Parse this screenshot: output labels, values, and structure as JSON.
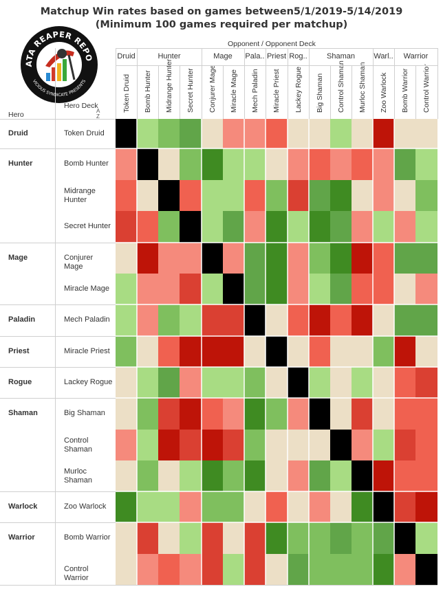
{
  "title_line1": "Matchup Win rates based on games between5/1/2019-5/14/2019",
  "title_line2": "(Minimum 100 games required per matchup)",
  "logo": {
    "text_top": "DATA REAPER REPORT",
    "text_bottom": "VICIOUS SYNDICATE PRESENTS"
  },
  "header": {
    "opponent_label": "Opponent  /  Opponent Deck",
    "hero_label": "Hero",
    "hero_deck_label": "Hero Deck"
  },
  "colors": {
    "black": "#000000",
    "beige": "#ecdfc6",
    "light_green": "#a8dc83",
    "mid_green": "#7fbf5e",
    "green": "#61a549",
    "dark_green": "#3f8b22",
    "salmon": "#f58a7c",
    "coral": "#f06150",
    "red_orange": "#da4032",
    "dark_red": "#be1408"
  },
  "chart_data": {
    "type": "heatmap",
    "title": "Matchup Win rates based on games between5/1/2019-5/14/2019",
    "subtitle": "(Minimum 100 games required per matchup)",
    "xlabel": "Opponent  /  Opponent Deck",
    "ylabel": "Hero / Hero Deck",
    "legend": "none",
    "classes": [
      {
        "name": "Druid",
        "decks": [
          "Token Druid"
        ]
      },
      {
        "name": "Hunter",
        "decks": [
          "Bomb Hunter",
          "Midrange Hunter",
          "Secret Hunter"
        ]
      },
      {
        "name": "Mage",
        "decks": [
          "Conjurer Mage",
          "Miracle Mage"
        ]
      },
      {
        "name": "Paladin",
        "decks": [
          "Mech Paladin"
        ]
      },
      {
        "name": "Priest",
        "decks": [
          "Miracle Priest"
        ]
      },
      {
        "name": "Rogue",
        "decks": [
          "Lackey Rogue"
        ]
      },
      {
        "name": "Shaman",
        "decks": [
          "Big Shaman",
          "Control Shaman",
          "Murloc Shaman"
        ]
      },
      {
        "name": "Warlock",
        "decks": [
          "Zoo Warlock"
        ]
      },
      {
        "name": "Warrior",
        "decks": [
          "Bomb Warrior",
          "Control Warrior"
        ]
      }
    ],
    "column_class_labels": [
      "Druid",
      "Hunter",
      "Mage",
      "Pala..",
      "Priest",
      "Rog..",
      "Shaman",
      "Warl..",
      "Warrior"
    ],
    "row_deck_labels": [
      "Token Druid",
      "Bomb Hunter",
      "Midrange Hunter",
      "Secret Hunter",
      "Conjurer Mage",
      "Miracle Mage",
      "Mech Paladin",
      "Miracle Priest",
      "Lackey Rogue",
      "Big Shaman",
      "Control Shaman",
      "Murloc Shaman",
      "Zoo Warlock",
      "Bomb Warrior",
      "Control Warrior"
    ],
    "column_decks": [
      "Token Druid",
      "Bomb Hunter",
      "Midrange Hunter",
      "Secret Hunter",
      "Conjurer Mage",
      "Miracle Mage",
      "Mech Paladin",
      "Miracle Priest",
      "Lackey Rogue",
      "Big Shaman",
      "Control Shaman",
      "Murloc Shaman",
      "Zoo Warlock",
      "Bomb Warrior",
      "Control Warrior"
    ],
    "cell_level_scale": "0=mirror (black), 1=even (beige), 2=light green, 3=mid green, 4=green, 5=dark green, -1=salmon, -2=coral, -3=red-orange, -4=dark red",
    "matrix": [
      [
        0,
        2,
        3,
        4,
        1,
        -1,
        -1,
        -2,
        1,
        1,
        2,
        1,
        -4,
        1,
        1
      ],
      [
        -1,
        0,
        1,
        3,
        5,
        2,
        2,
        1,
        -1,
        -2,
        -1,
        -2,
        -1,
        4,
        2
      ],
      [
        -2,
        1,
        0,
        -2,
        2,
        2,
        -2,
        3,
        -3,
        4,
        5,
        1,
        -1,
        1,
        3
      ],
      [
        -3,
        -2,
        3,
        0,
        2,
        4,
        -1,
        5,
        2,
        5,
        4,
        -1,
        2,
        -1,
        2
      ],
      [
        1,
        -4,
        -1,
        -1,
        0,
        -1,
        4,
        5,
        -1,
        3,
        5,
        -4,
        -2,
        4,
        4
      ],
      [
        2,
        -1,
        -1,
        -3,
        2,
        0,
        4,
        5,
        -1,
        2,
        4,
        -2,
        -2,
        1,
        -1
      ],
      [
        2,
        -1,
        3,
        2,
        -3,
        -3,
        0,
        1,
        -2,
        -4,
        -2,
        -4,
        1,
        4,
        4
      ],
      [
        3,
        1,
        -2,
        -4,
        -4,
        -4,
        1,
        0,
        1,
        -2,
        1,
        1,
        3,
        -4,
        1
      ],
      [
        1,
        2,
        4,
        -1,
        2,
        2,
        3,
        1,
        0,
        2,
        1,
        2,
        1,
        -2,
        -3
      ],
      [
        1,
        3,
        -3,
        -4,
        -2,
        -1,
        5,
        3,
        -1,
        0,
        1,
        -3,
        1,
        -2,
        -2
      ],
      [
        -1,
        2,
        -4,
        -3,
        -4,
        -3,
        3,
        1,
        1,
        1,
        0,
        -1,
        2,
        -3,
        -2
      ],
      [
        1,
        3,
        1,
        2,
        5,
        3,
        5,
        1,
        -1,
        4,
        2,
        0,
        -4,
        -2,
        -2
      ],
      [
        5,
        2,
        2,
        -1,
        3,
        3,
        1,
        -2,
        1,
        -1,
        1,
        5,
        0,
        -3,
        -4
      ],
      [
        1,
        -3,
        1,
        2,
        -3,
        1,
        -3,
        5,
        3,
        3,
        4,
        3,
        4,
        0,
        2
      ],
      [
        1,
        -1,
        -2,
        -1,
        -3,
        2,
        -3,
        1,
        4,
        3,
        3,
        3,
        5,
        -1,
        0
      ]
    ]
  }
}
